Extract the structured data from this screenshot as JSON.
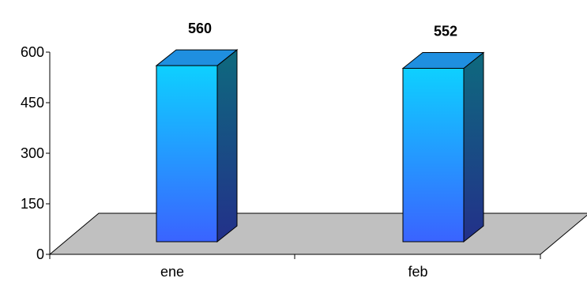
{
  "chart_data": {
    "type": "bar",
    "style": "3d-column",
    "categories": [
      "ene",
      "feb"
    ],
    "values": [
      560,
      552
    ],
    "data_labels": [
      "560",
      "552"
    ],
    "y_ticks": [
      "0",
      "150",
      "300",
      "450",
      "600"
    ],
    "ylim": [
      0,
      600
    ],
    "title": "",
    "xlabel": "",
    "ylabel": "",
    "legend": "none",
    "grid": false,
    "colors": {
      "bar_front_top": "#0ed0ff",
      "bar_front_bottom": "#3a63ff",
      "bar_top": "#1f8fe0",
      "bar_side_top": "#0e6a7e",
      "bar_side_bottom": "#23308a",
      "floor": "#c0c0c0"
    }
  }
}
